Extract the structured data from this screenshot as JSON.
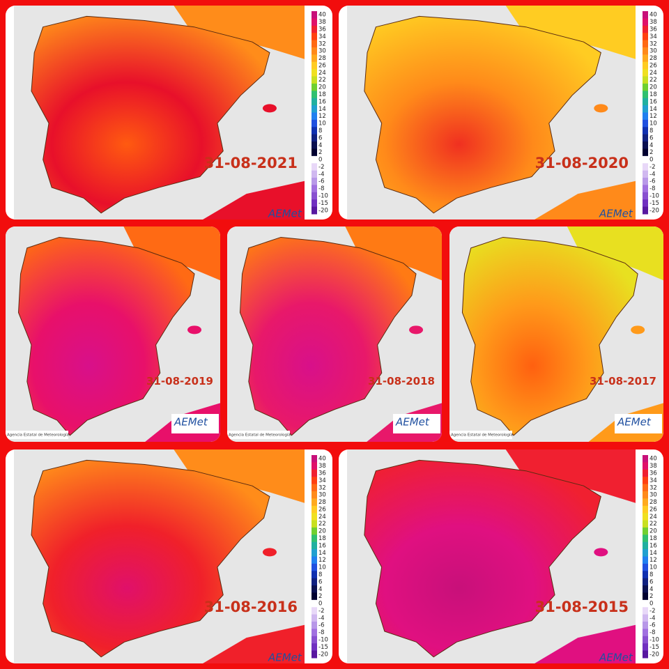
{
  "panels": [
    {
      "date": "31-08-2021"
    },
    {
      "date": "31-08-2020"
    },
    {
      "date": "31-08-2019"
    },
    {
      "date": "31-08-2018"
    },
    {
      "date": "31-08-2017"
    },
    {
      "date": "31-08-2016"
    },
    {
      "date": "31-08-2015"
    }
  ],
  "legend": {
    "ticks": [
      40,
      38,
      36,
      34,
      32,
      30,
      28,
      26,
      24,
      22,
      20,
      18,
      16,
      14,
      12,
      10,
      8,
      6,
      4,
      2,
      0,
      -2,
      -4,
      -6,
      -8,
      -10,
      -15,
      -20
    ]
  },
  "logo": {
    "text": "AEMet",
    "agency": "Agencia Estatal de Meteorología"
  }
}
